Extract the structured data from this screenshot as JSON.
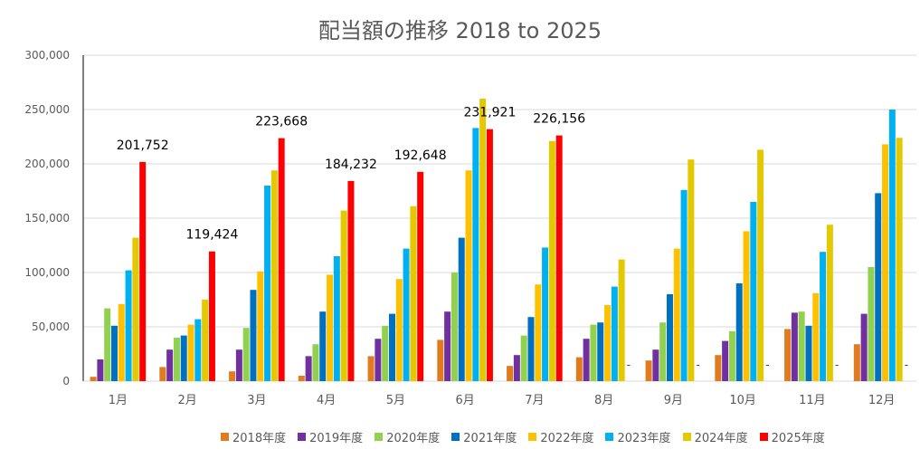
{
  "chart_data": {
    "type": "bar",
    "title": "配当額の推移  2018 to 2025",
    "categories": [
      "1月",
      "2月",
      "3月",
      "4月",
      "5月",
      "6月",
      "7月",
      "8月",
      "9月",
      "10月",
      "11月",
      "12月"
    ],
    "ylim": [
      0,
      300000
    ],
    "yticks": [
      "0",
      "50,000",
      "100,000",
      "150,000",
      "200,000",
      "250,000",
      "300,000"
    ],
    "ytick_values": [
      0,
      50000,
      100000,
      150000,
      200000,
      250000,
      300000
    ],
    "grid": true,
    "legend_position": "bottom",
    "series": [
      {
        "name": "2018年度",
        "color": "#E07B20",
        "values": [
          4000,
          13000,
          9000,
          5000,
          23000,
          38000,
          14000,
          22000,
          19000,
          24000,
          48000,
          34000
        ]
      },
      {
        "name": "2019年度",
        "color": "#7030A0",
        "values": [
          20000,
          29000,
          29000,
          23000,
          39000,
          64000,
          24000,
          39000,
          29000,
          37000,
          63000,
          62000
        ]
      },
      {
        "name": "2020年度",
        "color": "#92D050",
        "values": [
          67000,
          40000,
          49000,
          34000,
          51000,
          100000,
          42000,
          52000,
          54000,
          46000,
          64000,
          105000
        ]
      },
      {
        "name": "2021年度",
        "color": "#0070C0",
        "values": [
          51000,
          42000,
          84000,
          64000,
          62000,
          132000,
          59000,
          54000,
          80000,
          90000,
          51000,
          173000
        ]
      },
      {
        "name": "2022年度",
        "color": "#FFC000",
        "values": [
          71000,
          52000,
          101000,
          98000,
          94000,
          194000,
          89000,
          70000,
          122000,
          138000,
          81000,
          218000
        ]
      },
      {
        "name": "2023年度",
        "color": "#00B0F0",
        "values": [
          102000,
          57000,
          180000,
          115000,
          122000,
          233000,
          123000,
          87000,
          176000,
          165000,
          119000,
          250000
        ]
      },
      {
        "name": "2024年度",
        "color": "#E4C800",
        "values": [
          132000,
          75000,
          194000,
          157000,
          161000,
          260000,
          221000,
          112000,
          204000,
          213000,
          144000,
          224000
        ]
      },
      {
        "name": "2025年度",
        "color": "#FF0000",
        "values": [
          201752,
          119424,
          223668,
          184232,
          192648,
          231921,
          226156,
          null,
          null,
          null,
          null,
          null
        ]
      }
    ],
    "data_labels": [
      "201,752",
      "119,424",
      "223,668",
      "184,232",
      "192,648",
      "231,921",
      "226,156"
    ],
    "missing_marker": "-"
  }
}
